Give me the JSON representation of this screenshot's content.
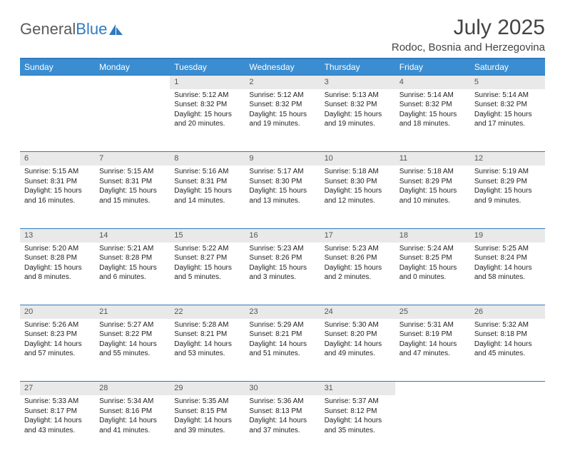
{
  "brand": {
    "part1": "General",
    "part2": "Blue"
  },
  "title": "July 2025",
  "location": "Rodoc, Bosnia and Herzegovina",
  "colors": {
    "header_bg": "#3a8dd0",
    "accent": "#2f7bbf",
    "daynum_bg": "#e9e9e9",
    "text": "#222222",
    "muted": "#555555"
  },
  "weekdays": [
    "Sunday",
    "Monday",
    "Tuesday",
    "Wednesday",
    "Thursday",
    "Friday",
    "Saturday"
  ],
  "weeks": [
    [
      null,
      null,
      {
        "n": "1",
        "sr": "5:12 AM",
        "ss": "8:32 PM",
        "dl": "15 hours and 20 minutes."
      },
      {
        "n": "2",
        "sr": "5:12 AM",
        "ss": "8:32 PM",
        "dl": "15 hours and 19 minutes."
      },
      {
        "n": "3",
        "sr": "5:13 AM",
        "ss": "8:32 PM",
        "dl": "15 hours and 19 minutes."
      },
      {
        "n": "4",
        "sr": "5:14 AM",
        "ss": "8:32 PM",
        "dl": "15 hours and 18 minutes."
      },
      {
        "n": "5",
        "sr": "5:14 AM",
        "ss": "8:32 PM",
        "dl": "15 hours and 17 minutes."
      }
    ],
    [
      {
        "n": "6",
        "sr": "5:15 AM",
        "ss": "8:31 PM",
        "dl": "15 hours and 16 minutes."
      },
      {
        "n": "7",
        "sr": "5:15 AM",
        "ss": "8:31 PM",
        "dl": "15 hours and 15 minutes."
      },
      {
        "n": "8",
        "sr": "5:16 AM",
        "ss": "8:31 PM",
        "dl": "15 hours and 14 minutes."
      },
      {
        "n": "9",
        "sr": "5:17 AM",
        "ss": "8:30 PM",
        "dl": "15 hours and 13 minutes."
      },
      {
        "n": "10",
        "sr": "5:18 AM",
        "ss": "8:30 PM",
        "dl": "15 hours and 12 minutes."
      },
      {
        "n": "11",
        "sr": "5:18 AM",
        "ss": "8:29 PM",
        "dl": "15 hours and 10 minutes."
      },
      {
        "n": "12",
        "sr": "5:19 AM",
        "ss": "8:29 PM",
        "dl": "15 hours and 9 minutes."
      }
    ],
    [
      {
        "n": "13",
        "sr": "5:20 AM",
        "ss": "8:28 PM",
        "dl": "15 hours and 8 minutes."
      },
      {
        "n": "14",
        "sr": "5:21 AM",
        "ss": "8:28 PM",
        "dl": "15 hours and 6 minutes."
      },
      {
        "n": "15",
        "sr": "5:22 AM",
        "ss": "8:27 PM",
        "dl": "15 hours and 5 minutes."
      },
      {
        "n": "16",
        "sr": "5:23 AM",
        "ss": "8:26 PM",
        "dl": "15 hours and 3 minutes."
      },
      {
        "n": "17",
        "sr": "5:23 AM",
        "ss": "8:26 PM",
        "dl": "15 hours and 2 minutes."
      },
      {
        "n": "18",
        "sr": "5:24 AM",
        "ss": "8:25 PM",
        "dl": "15 hours and 0 minutes."
      },
      {
        "n": "19",
        "sr": "5:25 AM",
        "ss": "8:24 PM",
        "dl": "14 hours and 58 minutes."
      }
    ],
    [
      {
        "n": "20",
        "sr": "5:26 AM",
        "ss": "8:23 PM",
        "dl": "14 hours and 57 minutes."
      },
      {
        "n": "21",
        "sr": "5:27 AM",
        "ss": "8:22 PM",
        "dl": "14 hours and 55 minutes."
      },
      {
        "n": "22",
        "sr": "5:28 AM",
        "ss": "8:21 PM",
        "dl": "14 hours and 53 minutes."
      },
      {
        "n": "23",
        "sr": "5:29 AM",
        "ss": "8:21 PM",
        "dl": "14 hours and 51 minutes."
      },
      {
        "n": "24",
        "sr": "5:30 AM",
        "ss": "8:20 PM",
        "dl": "14 hours and 49 minutes."
      },
      {
        "n": "25",
        "sr": "5:31 AM",
        "ss": "8:19 PM",
        "dl": "14 hours and 47 minutes."
      },
      {
        "n": "26",
        "sr": "5:32 AM",
        "ss": "8:18 PM",
        "dl": "14 hours and 45 minutes."
      }
    ],
    [
      {
        "n": "27",
        "sr": "5:33 AM",
        "ss": "8:17 PM",
        "dl": "14 hours and 43 minutes."
      },
      {
        "n": "28",
        "sr": "5:34 AM",
        "ss": "8:16 PM",
        "dl": "14 hours and 41 minutes."
      },
      {
        "n": "29",
        "sr": "5:35 AM",
        "ss": "8:15 PM",
        "dl": "14 hours and 39 minutes."
      },
      {
        "n": "30",
        "sr": "5:36 AM",
        "ss": "8:13 PM",
        "dl": "14 hours and 37 minutes."
      },
      {
        "n": "31",
        "sr": "5:37 AM",
        "ss": "8:12 PM",
        "dl": "14 hours and 35 minutes."
      },
      null,
      null
    ]
  ],
  "labels": {
    "sunrise": "Sunrise:",
    "sunset": "Sunset:",
    "daylight": "Daylight:"
  }
}
